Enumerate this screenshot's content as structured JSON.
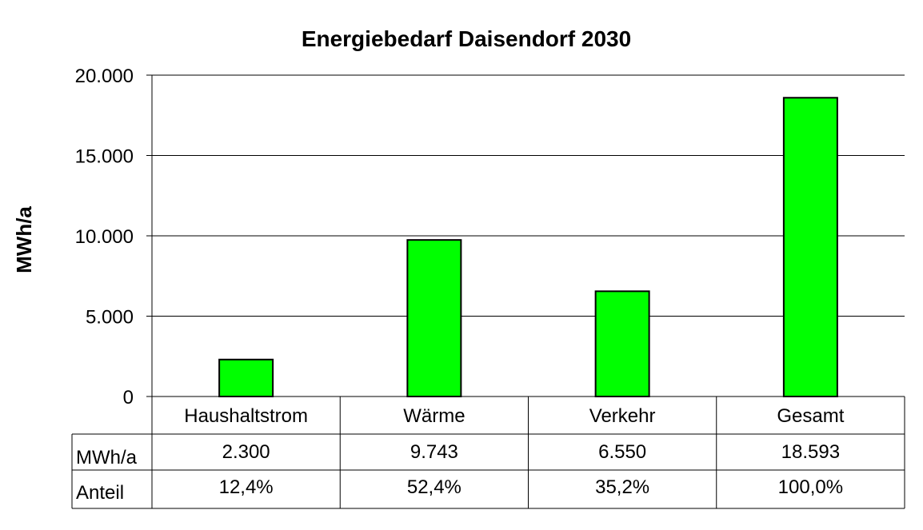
{
  "chart_data": {
    "type": "bar",
    "title": "Energiebedarf Daisendorf 2030",
    "ylabel": "MWh/a",
    "xlabel": "",
    "ylim": [
      0,
      20000
    ],
    "yticks": [
      0,
      5000,
      10000,
      15000,
      20000
    ],
    "ytick_labels": [
      "0",
      "5.000",
      "10.000",
      "15.000",
      "20.000"
    ],
    "grid": true,
    "bar_color": "#00ff00",
    "categories": [
      "Haushaltstrom",
      "Wärme",
      "Verkehr",
      "Gesamt"
    ],
    "values": [
      2300,
      9743,
      6550,
      18593
    ],
    "data_table": {
      "rows": [
        {
          "label": "MWh/a",
          "cells": [
            "2.300",
            "9.743",
            "6.550",
            "18.593"
          ]
        },
        {
          "label": "Anteil",
          "cells": [
            "12,4%",
            "52,4%",
            "35,2%",
            "100,0%"
          ]
        }
      ]
    }
  }
}
